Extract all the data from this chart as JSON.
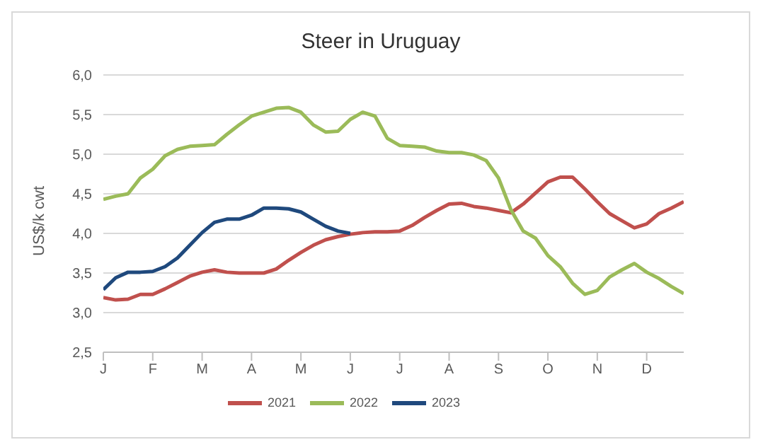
{
  "chart_data": {
    "type": "line",
    "title": "Steer in Uruguay",
    "ylabel": "US$/k cwt",
    "categories": [
      "J",
      null,
      null,
      null,
      "F",
      null,
      null,
      null,
      "M",
      null,
      null,
      null,
      "A",
      null,
      null,
      null,
      "M",
      null,
      null,
      null,
      "J",
      null,
      null,
      null,
      "J",
      null,
      null,
      null,
      "A",
      null,
      null,
      null,
      "S",
      null,
      null,
      null,
      "O",
      null,
      null,
      null,
      "N",
      null,
      null,
      null,
      "D",
      null,
      null,
      null
    ],
    "ylim": [
      2.5,
      6
    ],
    "yticks": [
      {
        "value": 2.5,
        "label": "2,5"
      },
      {
        "value": 3,
        "label": "3,0"
      },
      {
        "value": 3.5,
        "label": "3,5"
      },
      {
        "value": 4,
        "label": "4,0"
      },
      {
        "value": 4.5,
        "label": "4,5"
      },
      {
        "value": 5,
        "label": "5,0"
      },
      {
        "value": 5.5,
        "label": "5,5"
      },
      {
        "value": 6,
        "label": "6,0"
      }
    ],
    "grid": "y",
    "legend": "bottom",
    "marker": "none",
    "line_style": "solid",
    "series": [
      {
        "name": "2021",
        "color": "#c0504d",
        "values": [
          3.19,
          3.16,
          3.17,
          3.23,
          3.23,
          3.3,
          3.38,
          3.46,
          3.51,
          3.54,
          3.51,
          3.5,
          3.5,
          3.5,
          3.55,
          3.66,
          3.76,
          3.85,
          3.92,
          3.96,
          3.99,
          4.01,
          4.02,
          4.02,
          4.03,
          4.1,
          4.2,
          4.29,
          4.37,
          4.38,
          4.34,
          4.32,
          4.29,
          4.26,
          4.37,
          4.51,
          4.65,
          4.71,
          4.71,
          4.56,
          4.4,
          4.25,
          4.16,
          4.07,
          4.12,
          4.25,
          4.32,
          4.4
        ]
      },
      {
        "name": "2022",
        "color": "#9bbb59",
        "values": [
          4.43,
          4.47,
          4.5,
          4.7,
          4.81,
          4.98,
          5.06,
          5.1,
          5.11,
          5.12,
          5.25,
          5.37,
          5.48,
          5.53,
          5.58,
          5.59,
          5.53,
          5.37,
          5.28,
          5.29,
          5.44,
          5.53,
          5.48,
          5.2,
          5.11,
          5.1,
          5.09,
          5.04,
          5.02,
          5.02,
          4.99,
          4.92,
          4.7,
          4.3,
          4.03,
          3.94,
          3.72,
          3.58,
          3.37,
          3.23,
          3.28,
          3.45,
          3.54,
          3.62,
          3.51,
          3.43,
          3.33,
          3.24
        ]
      },
      {
        "name": "2023",
        "color": "#1f497d",
        "values": [
          3.29,
          3.44,
          3.51,
          3.51,
          3.52,
          3.58,
          3.69,
          3.85,
          4.01,
          4.14,
          4.18,
          4.18,
          4.23,
          4.32,
          4.32,
          4.31,
          4.27,
          4.18,
          4.09,
          4.03,
          4.0,
          null,
          null,
          null,
          null,
          null,
          null,
          null,
          null,
          null,
          null,
          null,
          null,
          null,
          null,
          null,
          null,
          null,
          null,
          null,
          null,
          null,
          null,
          null,
          null,
          null,
          null,
          null
        ]
      }
    ]
  }
}
